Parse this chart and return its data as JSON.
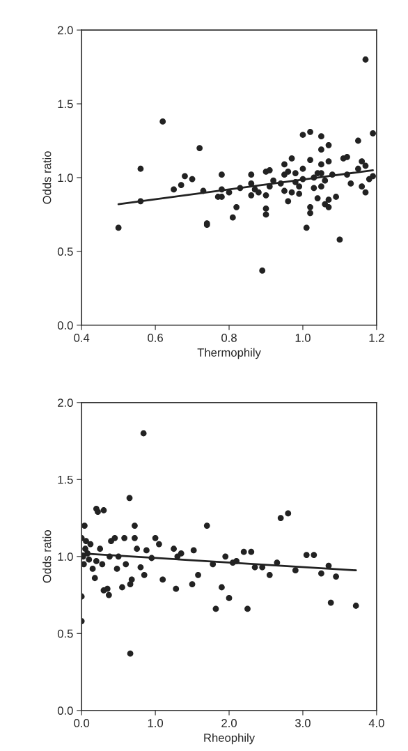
{
  "chart_data": [
    {
      "type": "scatter",
      "xlabel": "Thermophily",
      "ylabel": "Odds ratio",
      "xlim": [
        0.4,
        1.2
      ],
      "xticks": [
        {
          "value": 0.4,
          "label": "0.4"
        },
        {
          "value": 0.6,
          "label": "0.6"
        },
        {
          "value": 0.8,
          "label": "0.8"
        },
        {
          "value": 1.0,
          "label": "1.0"
        },
        {
          "value": 1.2,
          "label": "1.2"
        }
      ],
      "ylim": [
        0,
        2.0
      ],
      "yticks": [
        {
          "value": 0,
          "label": "0.0"
        },
        {
          "value": 0.5,
          "label": "0.5"
        },
        {
          "value": 1.0,
          "label": "1.0"
        },
        {
          "value": 1.5,
          "label": "1.5"
        },
        {
          "value": 2.0,
          "label": "2.0"
        }
      ],
      "grid": false,
      "legend": false,
      "series": [
        {
          "color": "#222222",
          "marker": "circle",
          "x": [
            0.5,
            0.56,
            0.56,
            0.62,
            0.65,
            0.67,
            0.68,
            0.7,
            0.72,
            0.73,
            0.74,
            0.74,
            0.77,
            0.78,
            0.78,
            0.78,
            0.8,
            0.81,
            0.82,
            0.83,
            0.86,
            0.86,
            0.86,
            0.87,
            0.88,
            0.89,
            0.9,
            0.9,
            0.9,
            0.9,
            0.91,
            0.91,
            0.92,
            0.94,
            0.95,
            0.95,
            0.95,
            0.96,
            0.96,
            0.97,
            0.97,
            0.98,
            0.98,
            0.99,
            0.99,
            1.0,
            1.0,
            1.0,
            1.01,
            1.02,
            1.02,
            1.02,
            1.02,
            1.03,
            1.03,
            1.04,
            1.04,
            1.05,
            1.05,
            1.05,
            1.05,
            1.05,
            1.06,
            1.06,
            1.07,
            1.07,
            1.07,
            1.07,
            1.08,
            1.09,
            1.1,
            1.11,
            1.12,
            1.12,
            1.13,
            1.15,
            1.15,
            1.16,
            1.16,
            1.17,
            1.17,
            1.17,
            1.18,
            1.19,
            1.19
          ],
          "values": [
            0.66,
            0.84,
            1.06,
            1.38,
            0.92,
            0.95,
            1.01,
            0.99,
            1.2,
            0.91,
            0.68,
            0.69,
            0.87,
            0.87,
            1.02,
            0.92,
            0.9,
            0.73,
            0.8,
            0.93,
            0.88,
            0.96,
            1.02,
            0.92,
            0.9,
            0.37,
            0.75,
            0.79,
            0.88,
            1.04,
            1.05,
            0.94,
            0.98,
            0.96,
            1.09,
            0.91,
            1.02,
            1.04,
            0.84,
            1.13,
            0.9,
            0.97,
            1.03,
            0.89,
            0.94,
            1.29,
            1.06,
            0.99,
            0.66,
            1.31,
            0.8,
            0.76,
            1.12,
            1.0,
            0.93,
            1.03,
            0.86,
            1.28,
            1.19,
            1.09,
            1.03,
            0.94,
            0.98,
            0.82,
            0.85,
            1.22,
            1.11,
            0.8,
            1.02,
            0.87,
            0.58,
            1.13,
            1.02,
            1.14,
            0.96,
            1.25,
            1.06,
            1.11,
            0.94,
            0.9,
            1.8,
            1.08,
            0.99,
            1.3,
            1.01
          ]
        },
        {
          "type": "line",
          "color": "#222222",
          "marker": "none",
          "line_style": "solid",
          "x": [
            0.5,
            1.19
          ],
          "values": [
            0.82,
            1.05
          ]
        }
      ]
    },
    {
      "type": "scatter",
      "xlabel": "Rheophily",
      "ylabel": "Odds ratio",
      "xlim": [
        0,
        4.0
      ],
      "xticks": [
        {
          "value": 0,
          "label": "0.0"
        },
        {
          "value": 1.0,
          "label": "1.0"
        },
        {
          "value": 2.0,
          "label": "2.0"
        },
        {
          "value": 3.0,
          "label": "3.0"
        },
        {
          "value": 4.0,
          "label": "4.0"
        }
      ],
      "ylim": [
        0,
        2.0
      ],
      "yticks": [
        {
          "value": 0,
          "label": "0.0"
        },
        {
          "value": 0.5,
          "label": "0.5"
        },
        {
          "value": 1.0,
          "label": "1.0"
        },
        {
          "value": 1.5,
          "label": "1.5"
        },
        {
          "value": 2.0,
          "label": "2.0"
        }
      ],
      "grid": false,
      "legend": false,
      "series": [
        {
          "color": "#222222",
          "marker": "circle",
          "x": [
            0.0,
            0.0,
            0.0,
            0.02,
            0.03,
            0.04,
            0.05,
            0.06,
            0.08,
            0.1,
            0.12,
            0.15,
            0.18,
            0.2,
            0.2,
            0.22,
            0.25,
            0.28,
            0.3,
            0.3,
            0.35,
            0.37,
            0.38,
            0.4,
            0.45,
            0.48,
            0.5,
            0.55,
            0.58,
            0.6,
            0.65,
            0.66,
            0.66,
            0.68,
            0.72,
            0.72,
            0.75,
            0.8,
            0.84,
            0.85,
            0.88,
            0.95,
            1.0,
            1.05,
            1.1,
            1.25,
            1.28,
            1.3,
            1.35,
            1.5,
            1.52,
            1.58,
            1.7,
            1.78,
            1.82,
            1.9,
            1.95,
            2.0,
            2.05,
            2.1,
            2.2,
            2.25,
            2.3,
            2.35,
            2.45,
            2.55,
            2.65,
            2.7,
            2.8,
            2.9,
            3.05,
            3.15,
            3.25,
            3.35,
            3.38,
            3.45,
            3.72
          ],
          "values": [
            0.58,
            0.74,
            1.12,
            1.0,
            0.95,
            1.2,
            1.05,
            1.1,
            1.02,
            0.98,
            1.08,
            0.92,
            0.86,
            0.97,
            1.31,
            1.29,
            1.05,
            0.95,
            1.3,
            0.78,
            0.79,
            0.75,
            1.0,
            1.1,
            1.12,
            0.92,
            1.0,
            0.8,
            1.12,
            0.95,
            1.38,
            0.37,
            0.82,
            0.85,
            1.2,
            1.12,
            1.05,
            0.93,
            1.8,
            0.88,
            1.04,
            0.99,
            1.12,
            1.08,
            0.85,
            1.05,
            0.79,
            1.0,
            1.02,
            0.82,
            1.04,
            0.88,
            1.2,
            0.95,
            0.66,
            0.8,
            1.0,
            0.73,
            0.96,
            0.97,
            1.03,
            0.66,
            1.03,
            0.93,
            0.93,
            0.88,
            0.96,
            1.25,
            1.28,
            0.91,
            1.01,
            1.01,
            0.89,
            0.94,
            0.7,
            0.87,
            0.68
          ]
        },
        {
          "type": "line",
          "color": "#222222",
          "marker": "none",
          "line_style": "solid",
          "x": [
            0.0,
            3.72
          ],
          "values": [
            1.02,
            0.91
          ]
        }
      ]
    }
  ]
}
